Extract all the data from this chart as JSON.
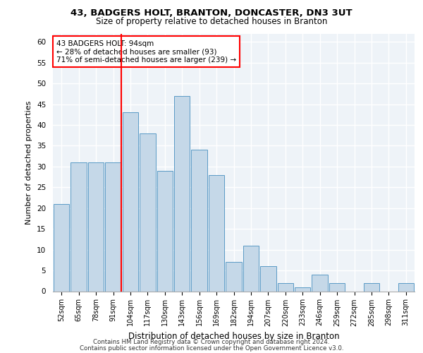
{
  "title1": "43, BADGERS HOLT, BRANTON, DONCASTER, DN3 3UT",
  "title2": "Size of property relative to detached houses in Branton",
  "xlabel": "Distribution of detached houses by size in Branton",
  "ylabel": "Number of detached properties",
  "categories": [
    "52sqm",
    "65sqm",
    "78sqm",
    "91sqm",
    "104sqm",
    "117sqm",
    "130sqm",
    "143sqm",
    "156sqm",
    "169sqm",
    "182sqm",
    "194sqm",
    "207sqm",
    "220sqm",
    "233sqm",
    "246sqm",
    "259sqm",
    "272sqm",
    "285sqm",
    "298sqm",
    "311sqm"
  ],
  "values": [
    21,
    31,
    31,
    31,
    43,
    38,
    29,
    47,
    34,
    28,
    7,
    11,
    6,
    2,
    1,
    4,
    2,
    0,
    2,
    0,
    2
  ],
  "bar_color": "#c5d8e8",
  "bar_edge_color": "#5a9ac5",
  "vline_x_index": 3,
  "vline_color": "red",
  "annotation_title": "43 BADGERS HOLT: 94sqm",
  "annotation_line1": "← 28% of detached houses are smaller (93)",
  "annotation_line2": "71% of semi-detached houses are larger (239) →",
  "annotation_box_color": "white",
  "annotation_box_edge": "red",
  "ylim": [
    0,
    62
  ],
  "yticks": [
    0,
    5,
    10,
    15,
    20,
    25,
    30,
    35,
    40,
    45,
    50,
    55,
    60
  ],
  "footer1": "Contains HM Land Registry data © Crown copyright and database right 2024.",
  "footer2": "Contains public sector information licensed under the Open Government Licence v3.0.",
  "bg_color": "#eef3f8",
  "grid_color": "#ffffff"
}
